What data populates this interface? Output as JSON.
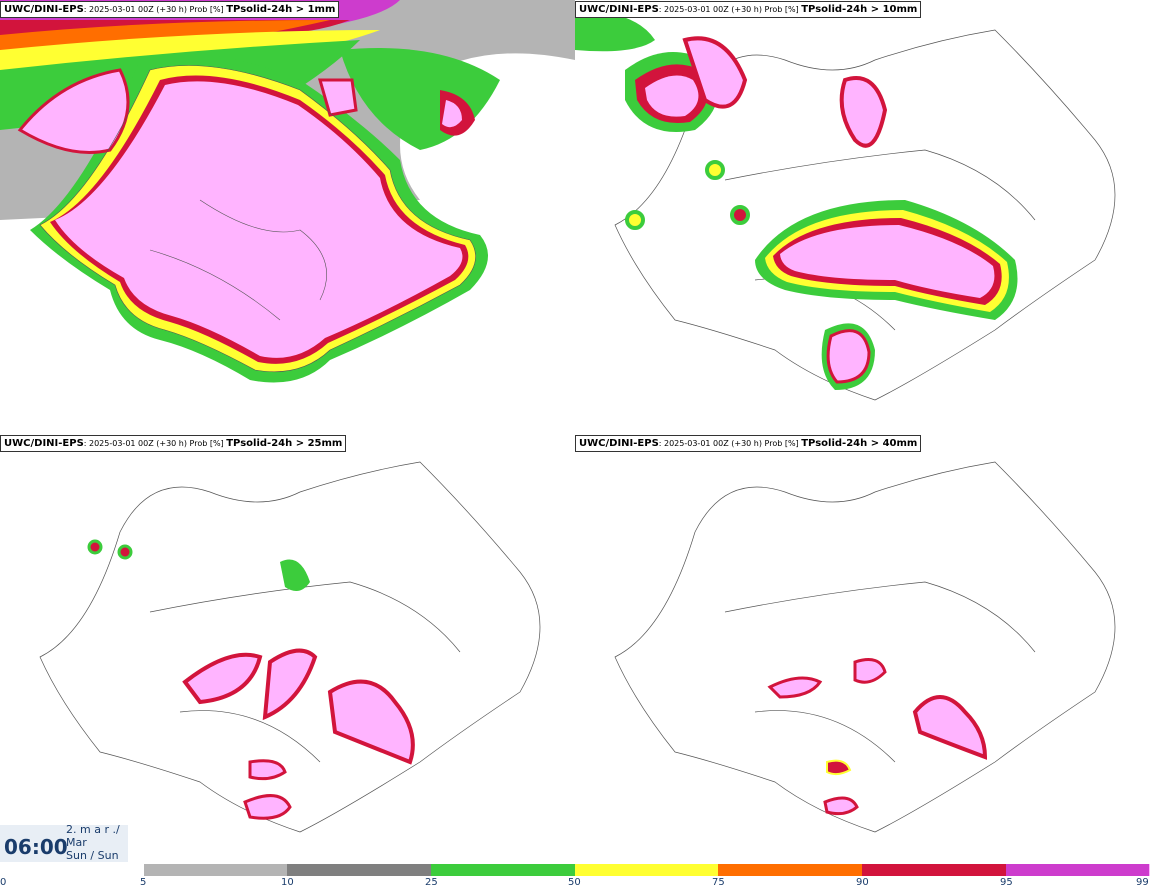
{
  "panels": [
    {
      "model": "UWC/DINI-EPS",
      "meta": ": 2025-03-01 00Z (+30 h) Prob [%] ",
      "param": "TPsolid-24h > 1mm"
    },
    {
      "model": "UWC/DINI-EPS",
      "meta": ": 2025-03-01 00Z (+30 h) Prob [%] ",
      "param": "TPsolid-24h > 10mm"
    },
    {
      "model": "UWC/DINI-EPS",
      "meta": ": 2025-03-01 00Z (+30 h) Prob [%] ",
      "param": "TPsolid-24h > 25mm"
    },
    {
      "model": "UWC/DINI-EPS",
      "meta": ": 2025-03-01 00Z (+30 h) Prob [%] ",
      "param": "TPsolid-24h > 40mm"
    }
  ],
  "time": {
    "hour": "06:00",
    "line1": "2. m a r ./",
    "line2": "Mar",
    "line3": "Sun / Sun"
  },
  "colorbar": {
    "ticks": [
      "0",
      "5",
      "10",
      "25",
      "50",
      "75",
      "90",
      "95",
      "99"
    ],
    "colors": [
      "#b4b4b4",
      "#7f7f7f",
      "#3ccc3c",
      "#ffff32",
      "#ff6e00",
      "#d2143c",
      "#cd3ccd",
      "#ffb4ff"
    ]
  }
}
